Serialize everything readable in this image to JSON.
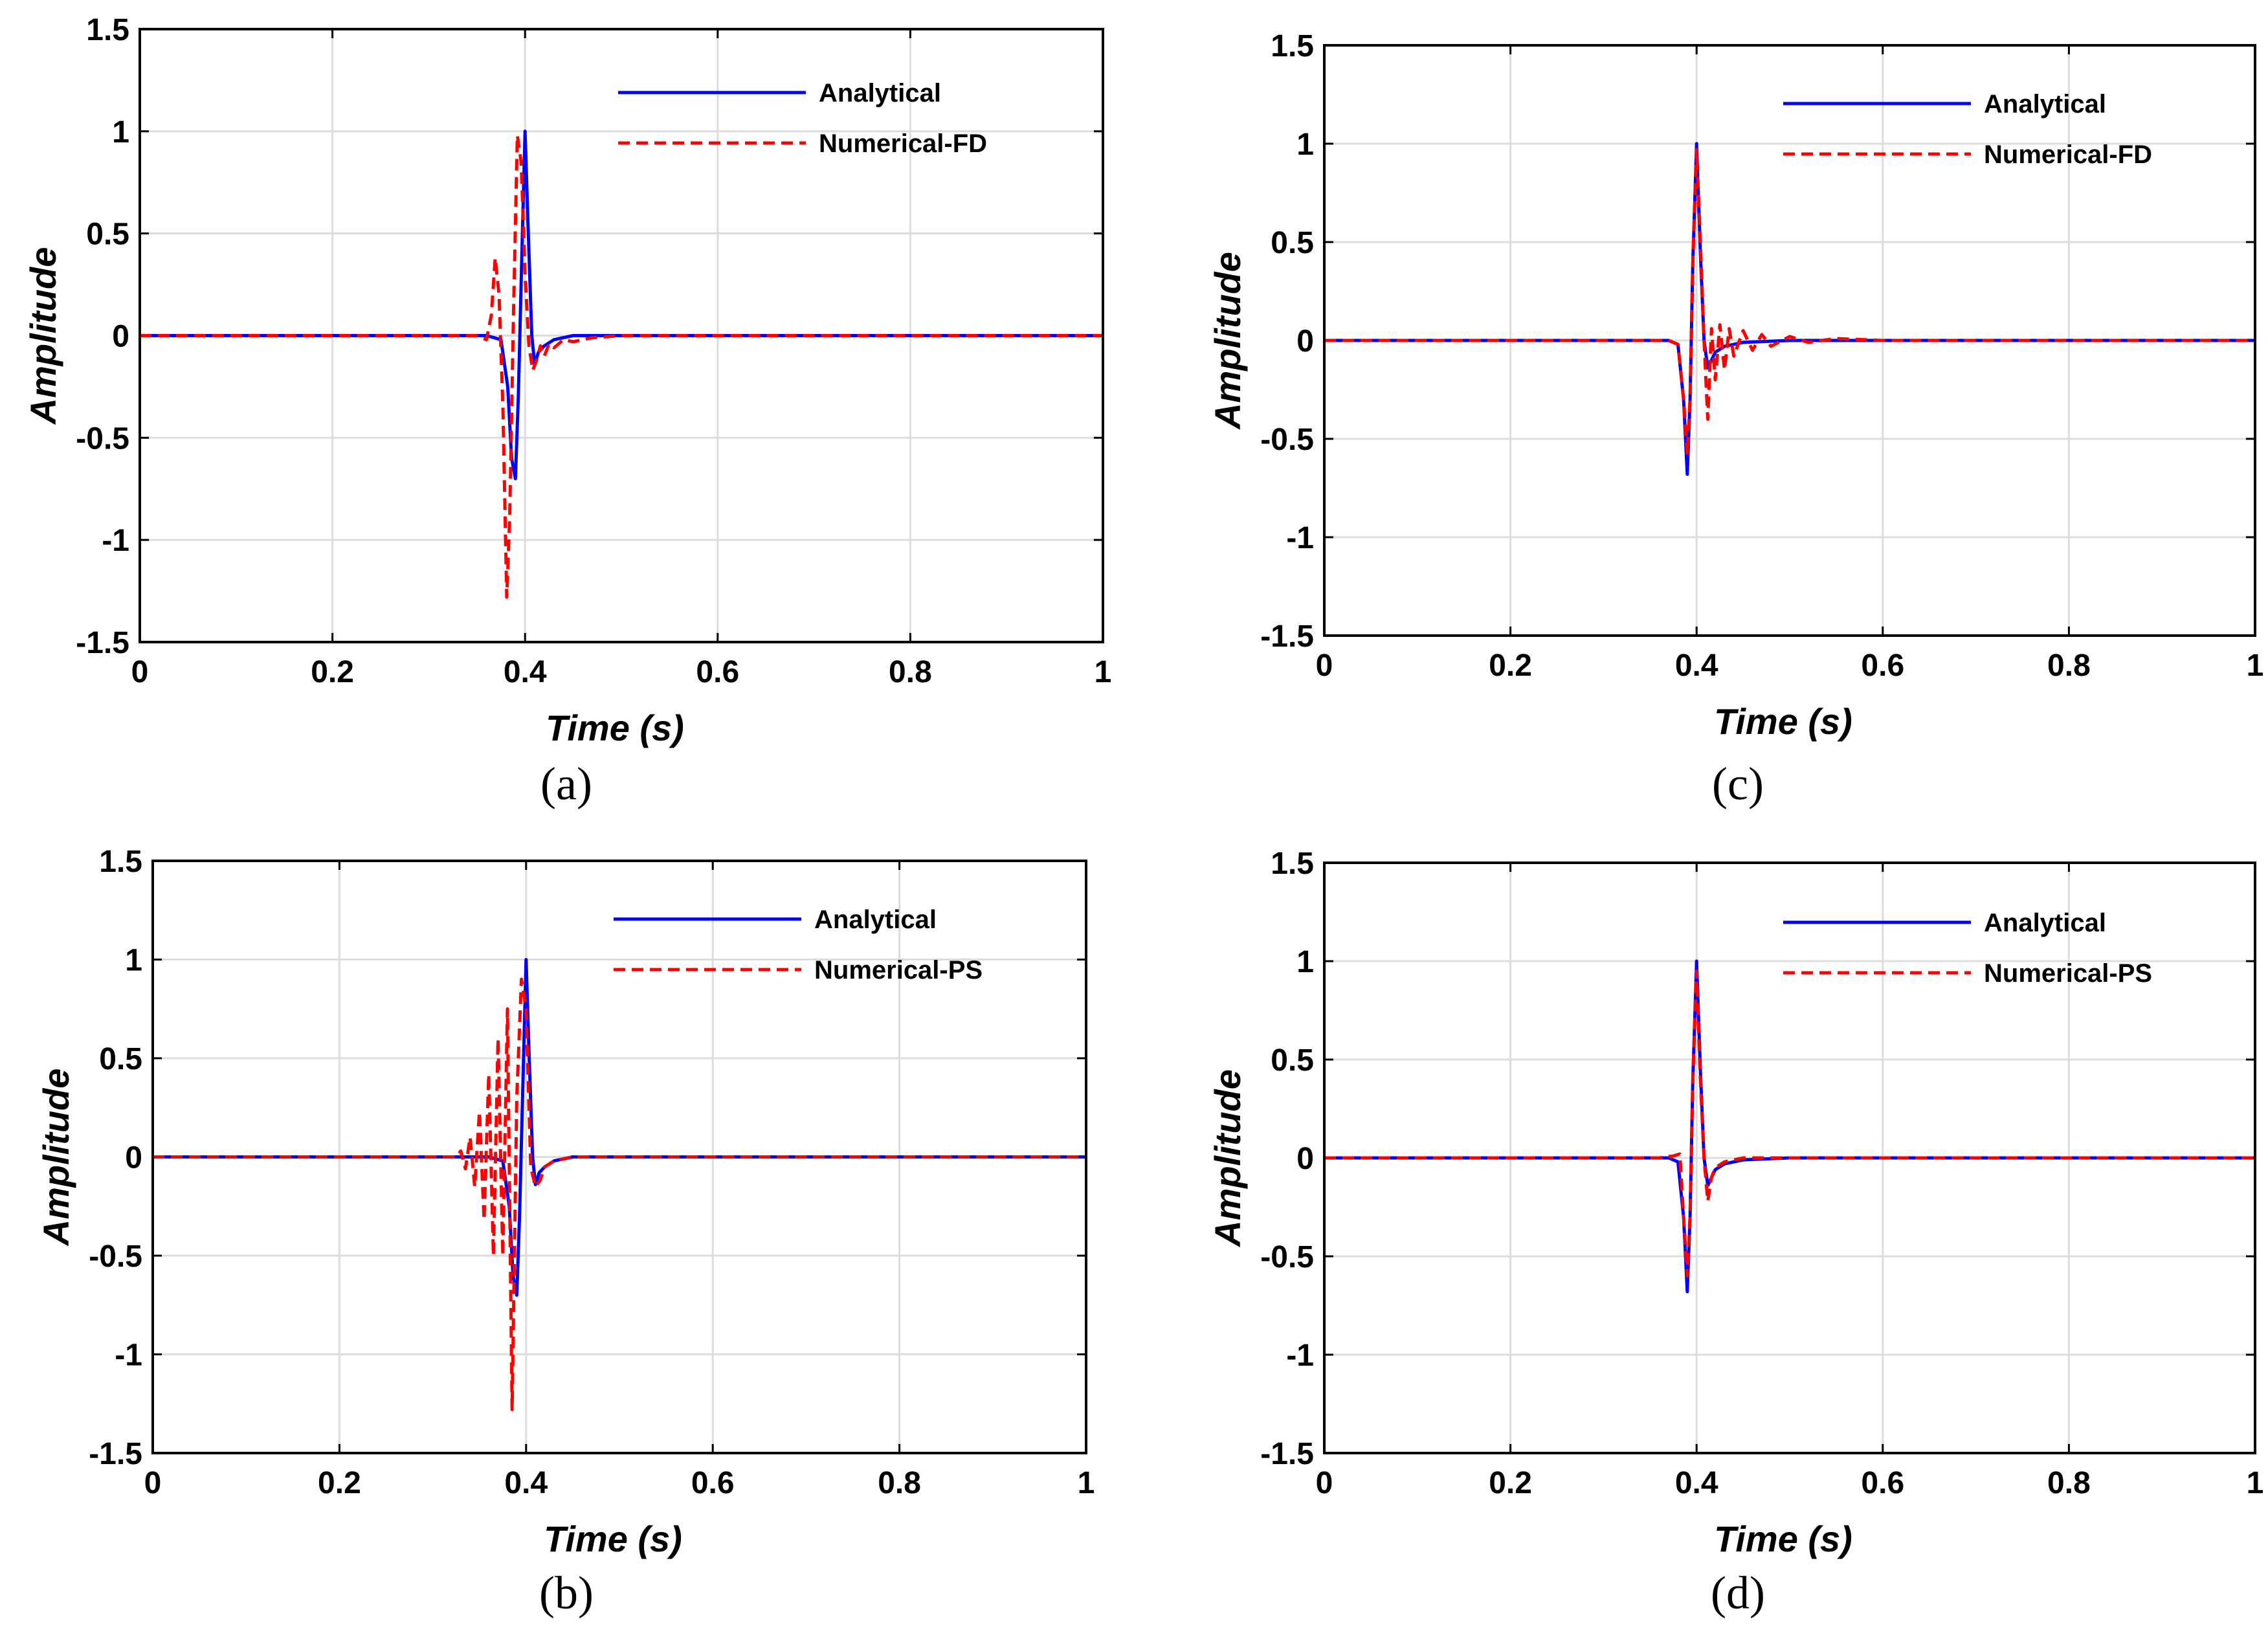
{
  "chart_data": [
    {
      "panel_label": "(a)",
      "type": "line",
      "xlabel": "Time (s)",
      "ylabel": "Amplitude",
      "xlim": [
        0,
        1
      ],
      "ylim": [
        -1.5,
        1.5
      ],
      "xticks": [
        "0",
        "0.2",
        "0.4",
        "0.6",
        "0.8",
        "1"
      ],
      "yticks": [
        "1.5",
        "1",
        "0.5",
        "0",
        "-0.5",
        "-1",
        "-1.5"
      ],
      "grid": true,
      "legend_position": "top-right",
      "series": [
        {
          "name": "Analytical",
          "color": "#0000ff",
          "style": "solid",
          "x": [
            0,
            0.36,
            0.375,
            0.382,
            0.386,
            0.39,
            0.393,
            0.397,
            0.4,
            0.403,
            0.407,
            0.41,
            0.414,
            0.42,
            0.43,
            0.45,
            0.5,
            1
          ],
          "y": [
            0,
            0,
            -0.02,
            -0.25,
            -0.6,
            -0.7,
            -0.3,
            0.45,
            1.0,
            0.55,
            0.0,
            -0.14,
            -0.08,
            -0.05,
            -0.02,
            0,
            0,
            0
          ]
        },
        {
          "name": "Numerical-FD",
          "color": "#ff0000",
          "style": "dashed",
          "x": [
            0,
            0.35,
            0.36,
            0.365,
            0.369,
            0.373,
            0.377,
            0.381,
            0.384,
            0.388,
            0.392,
            0.396,
            0.4,
            0.404,
            0.408,
            0.412,
            0.416,
            0.42,
            0.425,
            0.43,
            0.44,
            0.45,
            0.47,
            0.5,
            1
          ],
          "y": [
            0,
            0,
            -0.02,
            0.1,
            0.38,
            0.2,
            -0.35,
            -1.28,
            -0.9,
            0.1,
            0.98,
            0.85,
            0.3,
            -0.05,
            -0.17,
            -0.12,
            -0.05,
            -0.1,
            -0.04,
            -0.06,
            -0.02,
            -0.03,
            -0.01,
            0,
            0
          ]
        }
      ]
    },
    {
      "panel_label": "(b)",
      "type": "line",
      "xlabel": "Time (s)",
      "ylabel": "Amplitude",
      "xlim": [
        0,
        1
      ],
      "ylim": [
        -1.5,
        1.5
      ],
      "xticks": [
        "0",
        "0.2",
        "0.4",
        "0.6",
        "0.8",
        "1"
      ],
      "yticks": [
        "1.5",
        "1",
        "0.5",
        "0",
        "-0.5",
        "-1",
        "-1.5"
      ],
      "grid": true,
      "legend_position": "top-right",
      "series": [
        {
          "name": "Analytical",
          "color": "#0000ff",
          "style": "solid",
          "x": [
            0,
            0.36,
            0.375,
            0.382,
            0.386,
            0.39,
            0.393,
            0.397,
            0.4,
            0.403,
            0.407,
            0.41,
            0.414,
            0.42,
            0.43,
            0.45,
            0.5,
            1
          ],
          "y": [
            0,
            0,
            -0.02,
            -0.25,
            -0.6,
            -0.7,
            -0.3,
            0.45,
            1.0,
            0.55,
            0.0,
            -0.14,
            -0.08,
            -0.05,
            -0.02,
            0,
            0,
            0
          ]
        },
        {
          "name": "Numerical-PS",
          "color": "#ff0000",
          "style": "dashed",
          "x": [
            0,
            0.325,
            0.33,
            0.335,
            0.34,
            0.345,
            0.35,
            0.355,
            0.36,
            0.365,
            0.37,
            0.375,
            0.38,
            0.385,
            0.39,
            0.395,
            0.4,
            0.405,
            0.41,
            0.415,
            0.42,
            0.43,
            0.45,
            0.5,
            1
          ],
          "y": [
            0,
            0,
            0.03,
            -0.06,
            0.1,
            -0.15,
            0.23,
            -0.32,
            0.42,
            -0.5,
            0.6,
            -0.5,
            0.75,
            -1.28,
            0.3,
            0.9,
            0.75,
            -0.05,
            -0.15,
            -0.12,
            -0.05,
            -0.02,
            0,
            0,
            0
          ]
        }
      ]
    },
    {
      "panel_label": "(c)",
      "type": "line",
      "xlabel": "Time (s)",
      "ylabel": "Amplitude",
      "xlim": [
        0,
        1
      ],
      "ylim": [
        -1.5,
        1.5
      ],
      "xticks": [
        "0",
        "0.2",
        "0.4",
        "0.6",
        "0.8",
        "1"
      ],
      "yticks": [
        "1.5",
        "1",
        "0.5",
        "0",
        "-0.5",
        "-1",
        "-1.5"
      ],
      "grid": true,
      "legend_position": "top-right",
      "series": [
        {
          "name": "Analytical",
          "color": "#0000ff",
          "style": "solid",
          "x": [
            0,
            0.37,
            0.38,
            0.386,
            0.39,
            0.393,
            0.396,
            0.4,
            0.404,
            0.408,
            0.412,
            0.416,
            0.42,
            0.43,
            0.45,
            0.5,
            1
          ],
          "y": [
            0,
            0,
            -0.02,
            -0.3,
            -0.68,
            -0.3,
            0.4,
            1.0,
            0.45,
            0.0,
            -0.14,
            -0.1,
            -0.06,
            -0.03,
            -0.01,
            0,
            0
          ]
        },
        {
          "name": "Numerical-FD",
          "color": "#ff0000",
          "style": "dashed",
          "x": [
            0,
            0.37,
            0.38,
            0.386,
            0.39,
            0.393,
            0.396,
            0.4,
            0.404,
            0.408,
            0.412,
            0.416,
            0.42,
            0.425,
            0.43,
            0.435,
            0.44,
            0.45,
            0.46,
            0.47,
            0.48,
            0.5,
            0.52,
            0.55,
            0.6,
            1
          ],
          "y": [
            0,
            0,
            -0.02,
            -0.3,
            -0.58,
            -0.3,
            0.4,
            0.97,
            0.5,
            0.0,
            -0.4,
            0.06,
            -0.2,
            0.08,
            -0.15,
            0.06,
            -0.08,
            0.05,
            -0.05,
            0.03,
            -0.03,
            0.02,
            -0.01,
            0.01,
            0,
            0
          ]
        }
      ]
    },
    {
      "panel_label": "(d)",
      "type": "line",
      "xlabel": "Time (s)",
      "ylabel": "Amplitude",
      "xlim": [
        0,
        1
      ],
      "ylim": [
        -1.5,
        1.5
      ],
      "xticks": [
        "0",
        "0.2",
        "0.4",
        "0.6",
        "0.8",
        "1"
      ],
      "yticks": [
        "1.5",
        "1",
        "0.5",
        "0",
        "-0.5",
        "-1",
        "-1.5"
      ],
      "grid": true,
      "legend_position": "top-right",
      "series": [
        {
          "name": "Analytical",
          "color": "#0000ff",
          "style": "solid",
          "x": [
            0,
            0.37,
            0.38,
            0.386,
            0.39,
            0.393,
            0.396,
            0.4,
            0.404,
            0.408,
            0.412,
            0.416,
            0.42,
            0.43,
            0.45,
            0.5,
            1
          ],
          "y": [
            0,
            0,
            -0.02,
            -0.3,
            -0.68,
            -0.3,
            0.4,
            1.0,
            0.45,
            0.0,
            -0.14,
            -0.1,
            -0.06,
            -0.03,
            -0.01,
            0,
            0
          ]
        },
        {
          "name": "Numerical-PS",
          "color": "#ff0000",
          "style": "dashed",
          "x": [
            0,
            0.36,
            0.375,
            0.382,
            0.386,
            0.39,
            0.393,
            0.396,
            0.4,
            0.404,
            0.408,
            0.412,
            0.416,
            0.42,
            0.43,
            0.45,
            0.5,
            1
          ],
          "y": [
            0,
            0,
            0.01,
            0.02,
            -0.3,
            -0.6,
            -0.3,
            0.4,
            0.95,
            0.4,
            0.0,
            -0.22,
            -0.1,
            -0.05,
            -0.02,
            0,
            0,
            0
          ]
        }
      ]
    }
  ]
}
